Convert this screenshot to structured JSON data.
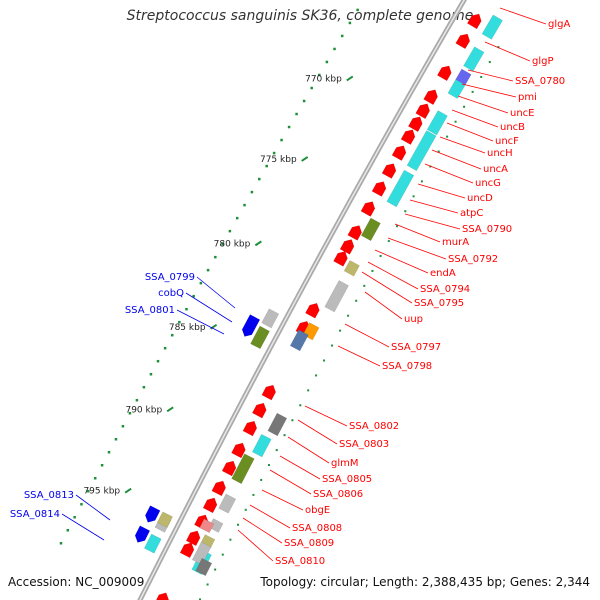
{
  "map": {
    "title": "Streptococcus sanguinis SK36, complete genome",
    "accession": "Accession: NC_009009",
    "summary": "Topology: circular; Length: 2,388,435 bp; Genes: 2,344"
  },
  "kbp_marks": [
    "770 kbp",
    "775 kbp",
    "780 kbp",
    "785 kbp",
    "790 kbp",
    "795 kbp"
  ],
  "right_labels": [
    "glgA",
    "glgP",
    "SSA_0780",
    "pmi",
    "uncE",
    "uncB",
    "uncF",
    "uncH",
    "uncA",
    "uncG",
    "uncD",
    "atpC",
    "SSA_0790",
    "murA",
    "SSA_0792",
    "endA",
    "SSA_0794",
    "SSA_0795",
    "uup",
    "SSA_0797",
    "SSA_0798",
    "SSA_0802",
    "SSA_0803",
    "glmM",
    "SSA_0805",
    "SSA_0806",
    "obgE",
    "SSA_0808",
    "SSA_0809",
    "SSA_0810"
  ],
  "left_labels": [
    "SSA_0799",
    "cobQ",
    "SSA_0801",
    "SSA_0813",
    "SSA_0814"
  ],
  "colors": {
    "forward": "#ff0000",
    "reverse": "#0000ff",
    "cyan": "#33dddd",
    "olive": "#6b8e23",
    "gray": "#aaaaaa",
    "orange": "#ff9900",
    "backbone": "#999999"
  }
}
